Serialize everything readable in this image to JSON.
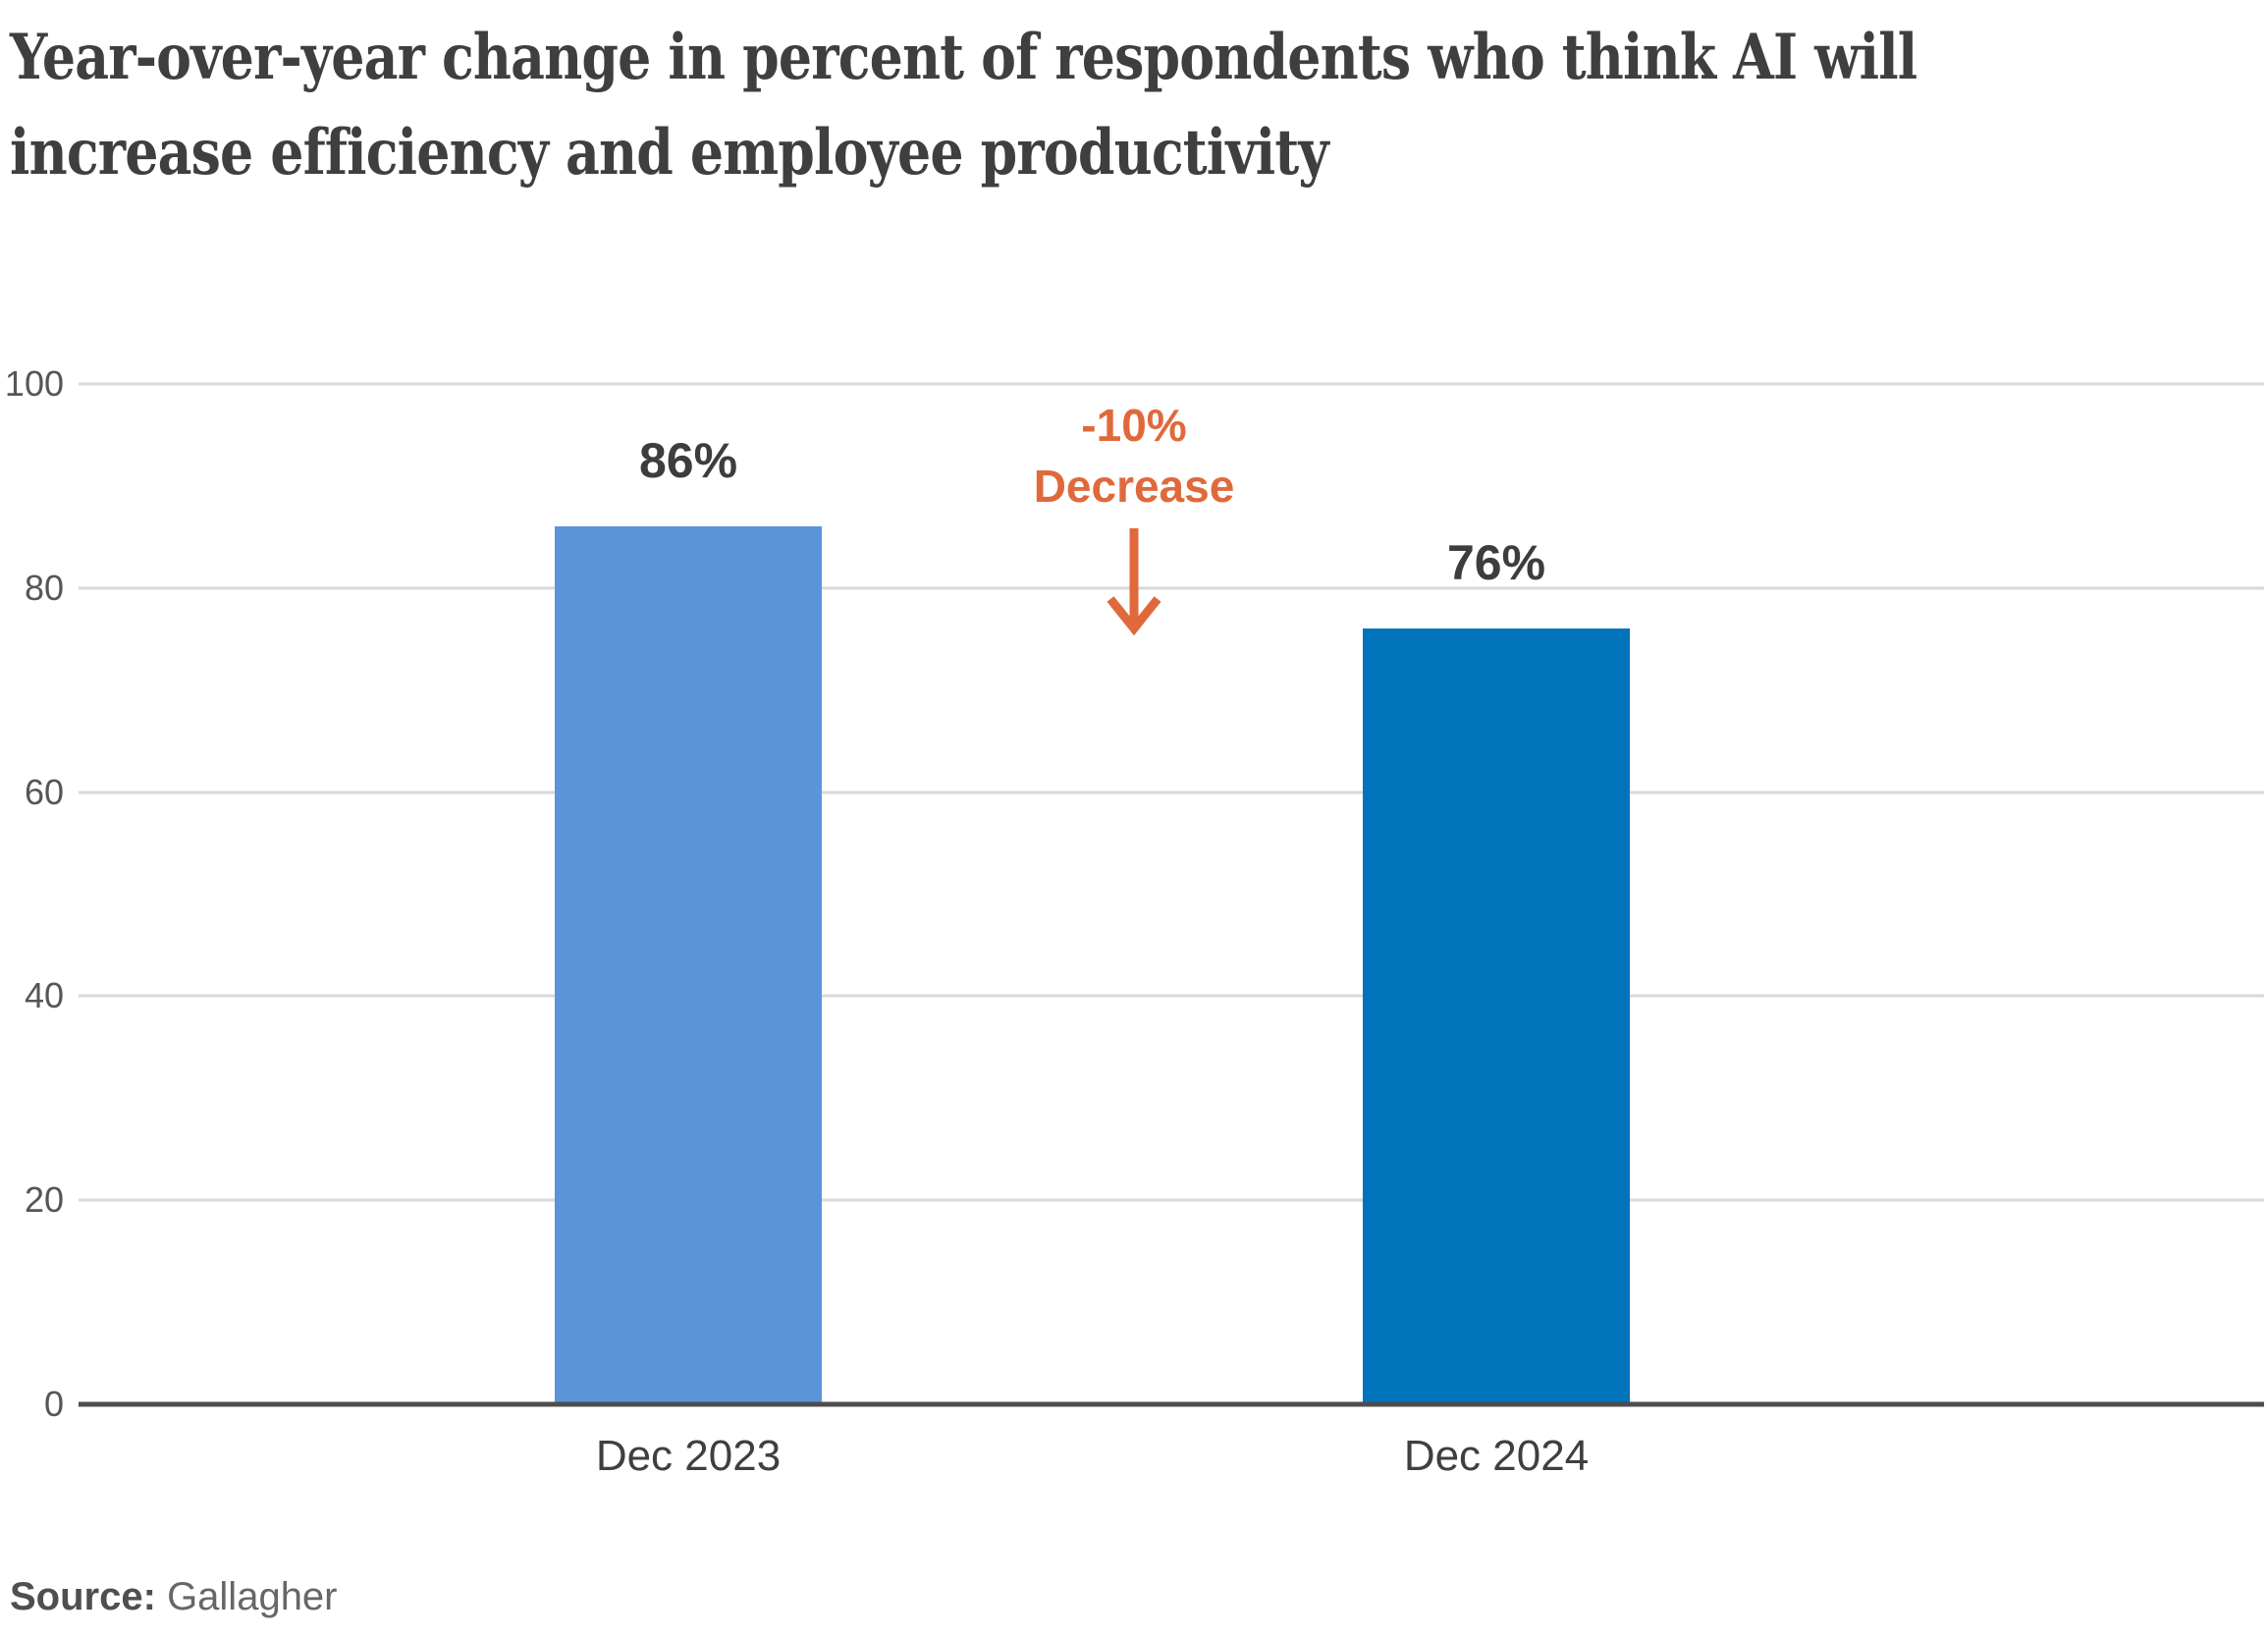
{
  "title": {
    "lines": [
      "Year-over-year change in percent of respondents who think AI will",
      "increase efficiency and employee productivity"
    ]
  },
  "annotation": {
    "delta": "-10%",
    "word": "Decrease",
    "color": "#e0693c",
    "arrow_icon": "down-arrow-icon"
  },
  "source": {
    "label": "Source:",
    "name": "Gallagher"
  },
  "colors": {
    "bar_2023": "#5b94d8",
    "bar_2024": "#0073ba",
    "gridline": "#d9d9d9",
    "axis_line": "#4d4d4d",
    "annotation_orange": "#e0693c",
    "title_text": "#3f3f3f",
    "tick_text": "#565656"
  },
  "chart_data": {
    "type": "bar",
    "title": "Year-over-year change in percent of respondents who think AI will increase efficiency and employee productivity",
    "categories": [
      "Dec 2023",
      "Dec 2024"
    ],
    "values": [
      86,
      76
    ],
    "value_labels": [
      "86%",
      "76%"
    ],
    "bar_colors": [
      "#5b94d8",
      "#0073ba"
    ],
    "xlabel": "",
    "ylabel": "",
    "ylim": [
      0,
      100
    ],
    "yticks": [
      0,
      20,
      40,
      60,
      80,
      100
    ],
    "grid": true,
    "legend": "none",
    "annotation": "-10% Decrease (arrow pointing down between bars)",
    "source": "Gallagher"
  }
}
